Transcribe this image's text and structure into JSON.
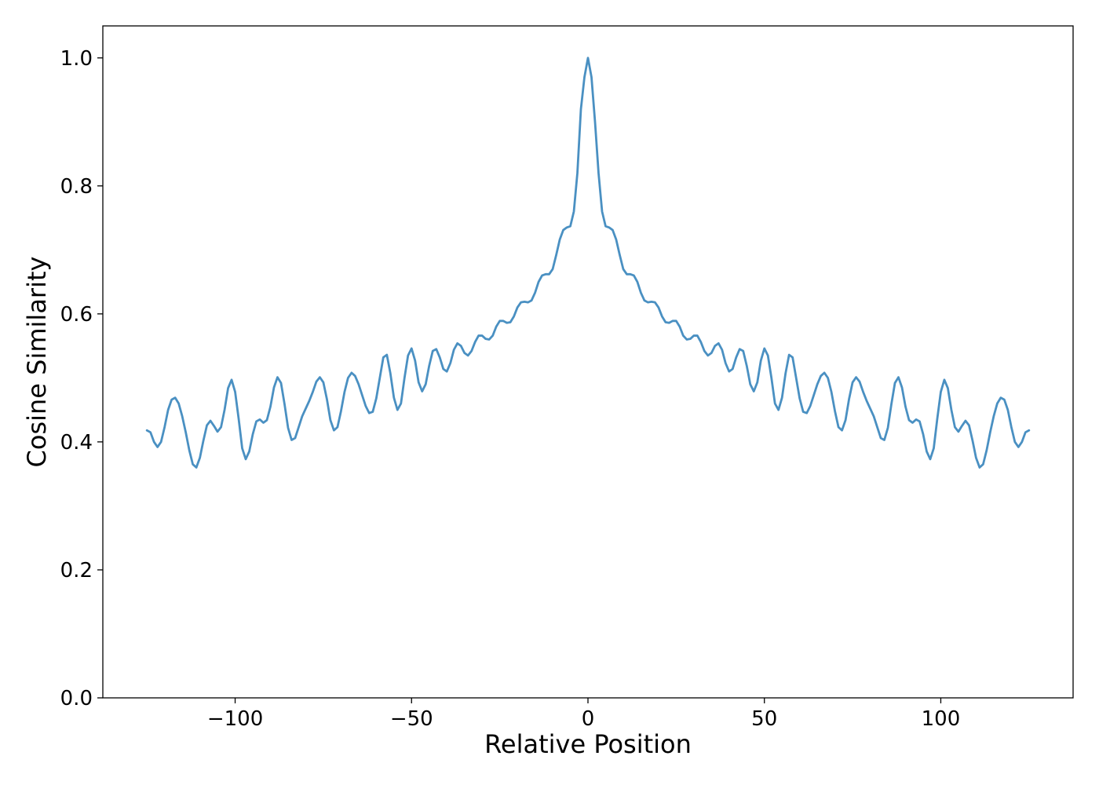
{
  "chart_data": {
    "type": "line",
    "title": "",
    "xlabel": "Relative Position",
    "ylabel": "Cosine Similarity",
    "xlim": [
      -137.5,
      137.5
    ],
    "ylim": [
      0.0,
      1.05
    ],
    "grid": false,
    "x_ticks": [
      -100,
      -50,
      0,
      50,
      100
    ],
    "x_tick_labels": [
      "−100",
      "−50",
      "0",
      "50",
      "100"
    ],
    "y_ticks": [
      0.0,
      0.2,
      0.4,
      0.6,
      0.8,
      1.0
    ],
    "y_tick_labels": [
      "0.0",
      "0.2",
      "0.4",
      "0.6",
      "0.8",
      "1.0"
    ],
    "line_color": "#4a90c2",
    "series": [
      {
        "x": [
          -125,
          -124,
          -123,
          -122,
          -121,
          -120,
          -119,
          -118,
          -117,
          -116,
          -115,
          -114,
          -113,
          -112,
          -111,
          -110,
          -109,
          -108,
          -107,
          -106,
          -105,
          -104,
          -103,
          -102,
          -101,
          -100,
          -99,
          -98,
          -97,
          -96,
          -95,
          -94,
          -93,
          -92,
          -91,
          -90,
          -89,
          -88,
          -87,
          -86,
          -85,
          -84,
          -83,
          -82,
          -81,
          -80,
          -79,
          -78,
          -77,
          -76,
          -75,
          -74,
          -73,
          -72,
          -71,
          -70,
          -69,
          -68,
          -67,
          -66,
          -65,
          -64,
          -63,
          -62,
          -61,
          -60,
          -59,
          -58,
          -57,
          -56,
          -55,
          -54,
          -53,
          -52,
          -51,
          -50,
          -49,
          -48,
          -47,
          -46,
          -45,
          -44,
          -43,
          -42,
          -41,
          -40,
          -39,
          -38,
          -37,
          -36,
          -35,
          -34,
          -33,
          -32,
          -31,
          -30,
          -29,
          -28,
          -27,
          -26,
          -25,
          -24,
          -23,
          -22,
          -21,
          -20,
          -19,
          -18,
          -17,
          -16,
          -15,
          -14,
          -13,
          -12,
          -11,
          -10,
          -9,
          -8,
          -7,
          -6,
          -5,
          -4,
          -3,
          -2,
          -1,
          0,
          1,
          2,
          3,
          4,
          5,
          6,
          7,
          8,
          9,
          10,
          11,
          12,
          13,
          14,
          15,
          16,
          17,
          18,
          19,
          20,
          21,
          22,
          23,
          24,
          25,
          26,
          27,
          28,
          29,
          30,
          31,
          32,
          33,
          34,
          35,
          36,
          37,
          38,
          39,
          40,
          41,
          42,
          43,
          44,
          45,
          46,
          47,
          48,
          49,
          50,
          51,
          52,
          53,
          54,
          55,
          56,
          57,
          58,
          59,
          60,
          61,
          62,
          63,
          64,
          65,
          66,
          67,
          68,
          69,
          70,
          71,
          72,
          73,
          74,
          75,
          76,
          77,
          78,
          79,
          80,
          81,
          82,
          83,
          84,
          85,
          86,
          87,
          88,
          89,
          90,
          91,
          92,
          93,
          94,
          95,
          96,
          97,
          98,
          99,
          100,
          101,
          102,
          103,
          104,
          105,
          106,
          107,
          108,
          109,
          110,
          111,
          112,
          113,
          114,
          115,
          116,
          117,
          118,
          119,
          120,
          121,
          122,
          123,
          124,
          125
        ],
        "y": [
          0.418,
          0.415,
          0.4,
          0.392,
          0.4,
          0.423,
          0.45,
          0.466,
          0.469,
          0.46,
          0.44,
          0.415,
          0.387,
          0.365,
          0.36,
          0.375,
          0.402,
          0.426,
          0.433,
          0.425,
          0.416,
          0.423,
          0.45,
          0.484,
          0.497,
          0.478,
          0.436,
          0.39,
          0.373,
          0.385,
          0.412,
          0.432,
          0.435,
          0.43,
          0.434,
          0.455,
          0.485,
          0.501,
          0.492,
          0.459,
          0.422,
          0.403,
          0.406,
          0.423,
          0.44,
          0.452,
          0.464,
          0.478,
          0.494,
          0.501,
          0.493,
          0.467,
          0.434,
          0.418,
          0.423,
          0.448,
          0.478,
          0.5,
          0.508,
          0.503,
          0.49,
          0.473,
          0.456,
          0.445,
          0.447,
          0.468,
          0.5,
          0.532,
          0.536,
          0.507,
          0.469,
          0.45,
          0.46,
          0.5,
          0.535,
          0.546,
          0.527,
          0.493,
          0.479,
          0.49,
          0.519,
          0.542,
          0.545,
          0.532,
          0.514,
          0.51,
          0.523,
          0.544,
          0.554,
          0.55,
          0.539,
          0.535,
          0.542,
          0.556,
          0.566,
          0.566,
          0.561,
          0.56,
          0.566,
          0.58,
          0.589,
          0.589,
          0.586,
          0.587,
          0.596,
          0.61,
          0.618,
          0.619,
          0.618,
          0.621,
          0.633,
          0.65,
          0.66,
          0.662,
          0.662,
          0.67,
          0.692,
          0.716,
          0.731,
          0.735,
          0.737,
          0.76,
          0.82,
          0.92,
          0.97,
          1.0,
          0.97,
          0.9,
          0.82,
          0.76,
          0.737,
          0.735,
          0.731,
          0.716,
          0.692,
          0.67,
          0.662,
          0.662,
          0.66,
          0.65,
          0.633,
          0.621,
          0.618,
          0.619,
          0.618,
          0.61,
          0.596,
          0.587,
          0.586,
          0.589,
          0.589,
          0.58,
          0.566,
          0.56,
          0.561,
          0.566,
          0.566,
          0.556,
          0.542,
          0.535,
          0.539,
          0.55,
          0.554,
          0.544,
          0.523,
          0.51,
          0.514,
          0.532,
          0.545,
          0.542,
          0.519,
          0.49,
          0.479,
          0.493,
          0.527,
          0.546,
          0.535,
          0.5,
          0.46,
          0.45,
          0.469,
          0.507,
          0.536,
          0.532,
          0.5,
          0.468,
          0.447,
          0.445,
          0.456,
          0.473,
          0.49,
          0.503,
          0.508,
          0.5,
          0.478,
          0.448,
          0.423,
          0.418,
          0.434,
          0.467,
          0.493,
          0.501,
          0.494,
          0.478,
          0.464,
          0.452,
          0.44,
          0.423,
          0.406,
          0.403,
          0.422,
          0.459,
          0.492,
          0.501,
          0.485,
          0.455,
          0.434,
          0.43,
          0.435,
          0.432,
          0.412,
          0.385,
          0.373,
          0.39,
          0.436,
          0.478,
          0.497,
          0.484,
          0.45,
          0.423,
          0.416,
          0.425,
          0.433,
          0.426,
          0.402,
          0.375,
          0.36,
          0.365,
          0.387,
          0.415,
          0.44,
          0.46,
          0.469,
          0.466,
          0.45,
          0.423,
          0.4,
          0.392,
          0.4,
          0.415,
          0.418
        ]
      }
    ]
  }
}
